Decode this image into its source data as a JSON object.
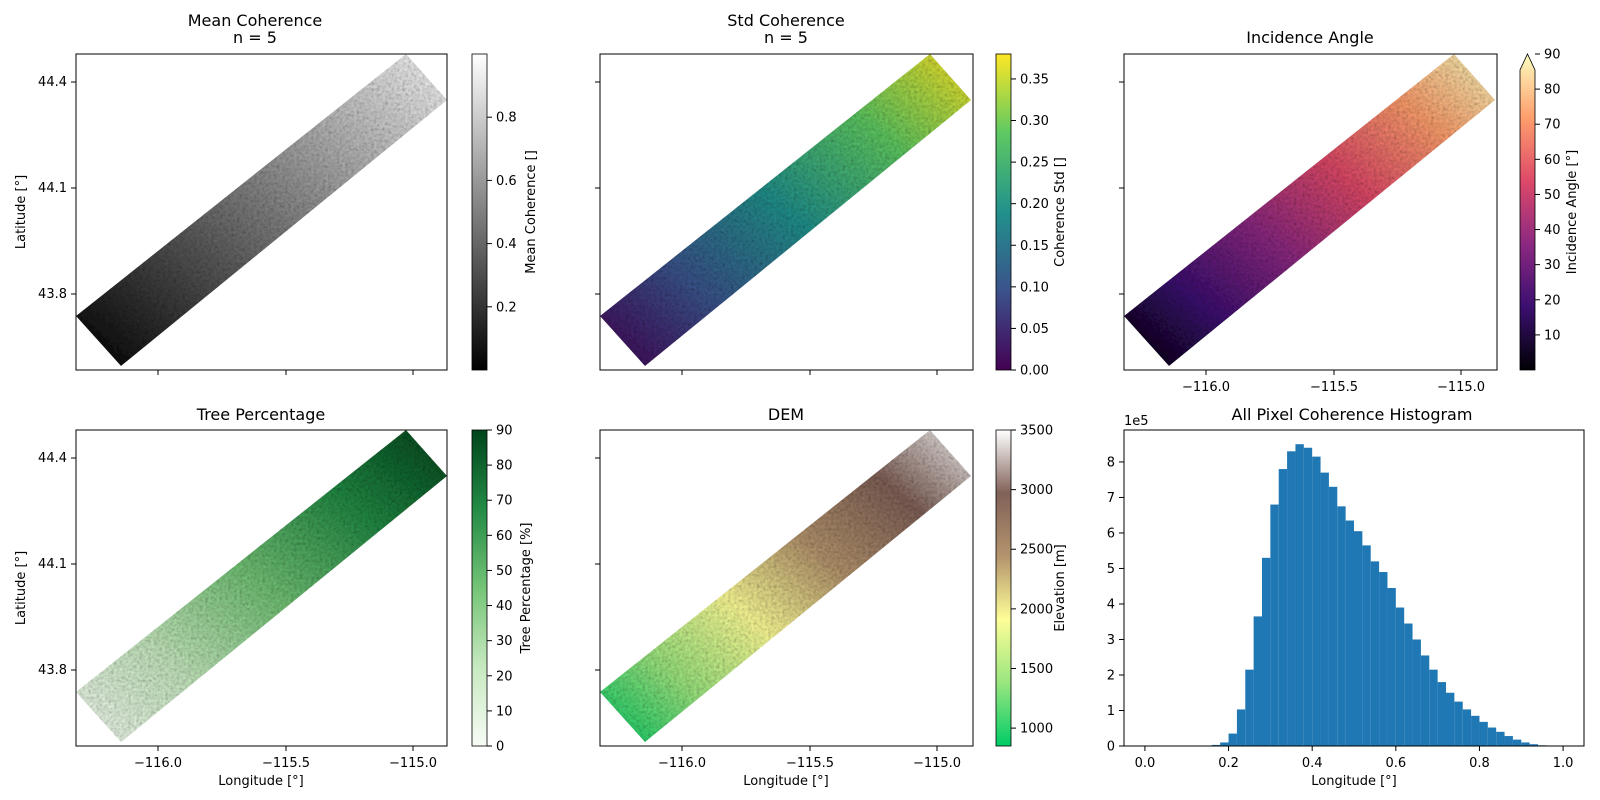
{
  "chart_data": [
    {
      "type": "heatmap",
      "title": "Mean Coherence",
      "subtitle": "n = 5",
      "ylabel": "Latitude [°]",
      "xlabel": "",
      "yticks": [
        "43.8",
        "44.1",
        "44.4"
      ],
      "colorbar": {
        "label": "Mean Coherence []",
        "colormap": "gray",
        "range": [
          0,
          1
        ],
        "ticks": [
          "0.2",
          "0.4",
          "0.6",
          "0.8"
        ],
        "colors": [
          "#000000",
          "#ffffff"
        ]
      }
    },
    {
      "type": "heatmap",
      "title": "Std Coherence",
      "subtitle": "n = 5",
      "xlabel": "",
      "colorbar": {
        "label": "Coherence Std []",
        "colormap": "viridis",
        "range": [
          0,
          0.38
        ],
        "ticks": [
          "0.00",
          "0.05",
          "0.10",
          "0.15",
          "0.20",
          "0.25",
          "0.30",
          "0.35"
        ],
        "colors": [
          "#440154",
          "#3b528b",
          "#21918c",
          "#5ec962",
          "#fde725"
        ]
      }
    },
    {
      "type": "heatmap",
      "title": "Incidence Angle",
      "xlabel": "",
      "xticks": [
        "−116.0",
        "−115.5",
        "−115.0"
      ],
      "colorbar": {
        "label": "Incidence Angle [°]",
        "colormap": "magma",
        "range": [
          0,
          90
        ],
        "extend": "max",
        "ticks": [
          "10",
          "20",
          "30",
          "40",
          "50",
          "60",
          "70",
          "80",
          "90"
        ],
        "colors": [
          "#000004",
          "#3b0f70",
          "#8c2981",
          "#de4968",
          "#fe9f6d",
          "#fcfdbf"
        ]
      }
    },
    {
      "type": "heatmap",
      "title": "Tree Percentage",
      "ylabel": "Latitude [°]",
      "xlabel": "Longitude [°]",
      "yticks": [
        "43.8",
        "44.1",
        "44.4"
      ],
      "xticks": [
        "−116.0",
        "−115.5",
        "−115.0"
      ],
      "colorbar": {
        "label": "Tree Percentage [%]",
        "colormap": "Greens",
        "range": [
          0,
          90
        ],
        "ticks": [
          "0",
          "10",
          "20",
          "30",
          "40",
          "50",
          "60",
          "70",
          "80",
          "90"
        ],
        "colors": [
          "#f7fcf5",
          "#c7e9c0",
          "#74c476",
          "#238b45",
          "#00441b"
        ]
      }
    },
    {
      "type": "heatmap",
      "title": "DEM",
      "xlabel": "Longitude [°]",
      "xticks": [
        "−116.0",
        "−115.5",
        "−115.0"
      ],
      "colorbar": {
        "label": "Elevation [m]",
        "colormap": "terrain",
        "range": [
          850,
          3500
        ],
        "ticks": [
          "1000",
          "1500",
          "2000",
          "2500",
          "3000",
          "3500"
        ],
        "colors": [
          "#00cc66",
          "#99e67f",
          "#fefe98",
          "#b4946d",
          "#806158",
          "#ffffff"
        ]
      }
    },
    {
      "type": "bar",
      "title": "All Pixel Coherence Histogram",
      "xlabel": "Longitude [°]",
      "ylabel": "",
      "y_multiplier": "1e5",
      "xlim": [
        -0.05,
        1.05
      ],
      "ylim": [
        0,
        8.9
      ],
      "xticks": [
        "0.0",
        "0.2",
        "0.4",
        "0.6",
        "0.8",
        "1.0"
      ],
      "yticks": [
        "0",
        "1",
        "2",
        "3",
        "4",
        "5",
        "6",
        "7",
        "8"
      ],
      "bin_width": 0.02,
      "bin_edges_start": 0.0,
      "values": [
        0,
        0,
        0,
        0,
        0,
        0,
        0,
        0,
        0.03,
        0.1,
        0.35,
        1.03,
        2.15,
        3.65,
        5.3,
        6.8,
        7.8,
        8.3,
        8.5,
        8.4,
        8.15,
        7.7,
        7.3,
        6.75,
        6.35,
        6.05,
        5.65,
        5.2,
        4.9,
        4.45,
        3.9,
        3.45,
        3.0,
        2.55,
        2.15,
        1.8,
        1.5,
        1.25,
        1.03,
        0.85,
        0.68,
        0.52,
        0.4,
        0.28,
        0.18,
        0.1,
        0.05,
        0.02,
        0.01,
        0.0
      ],
      "color": "#1f77b4"
    }
  ]
}
